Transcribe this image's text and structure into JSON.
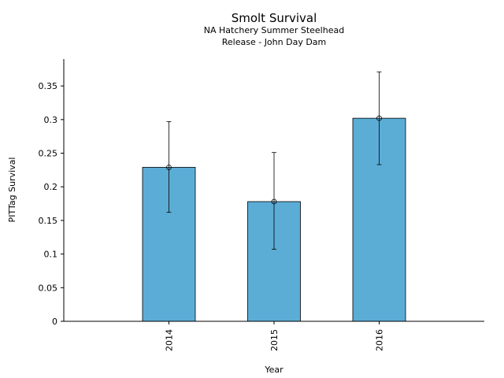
{
  "chart_data": {
    "type": "bar",
    "title": "Smolt Survival",
    "subtitle": [
      "NA Hatchery Summer Steelhead",
      "Release - John Day Dam"
    ],
    "xlabel": "Year",
    "ylabel": "PITTag Survival",
    "categories": [
      "2014",
      "2015",
      "2016"
    ],
    "values": [
      0.229,
      0.178,
      0.302
    ],
    "error_low": [
      0.162,
      0.107,
      0.233
    ],
    "error_high": [
      0.297,
      0.251,
      0.371
    ],
    "ylim": [
      0,
      0.39
    ],
    "yticks": [
      0,
      0.05,
      0.1,
      0.15,
      0.2,
      0.25,
      0.3,
      0.35
    ],
    "ytick_labels": [
      "0",
      "0.05",
      "0.1",
      "0.15",
      "0.2",
      "0.25",
      "0.3",
      "0.35"
    ],
    "bar_color": "#5badd6",
    "grid": false,
    "legend": "none"
  }
}
